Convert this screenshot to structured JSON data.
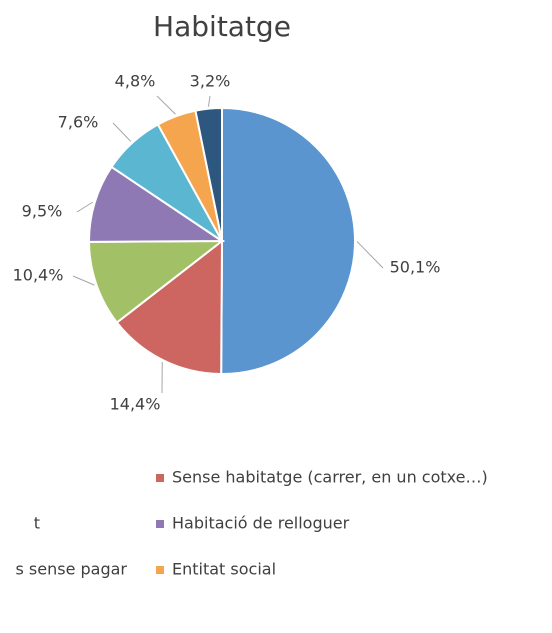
{
  "chart_data": {
    "type": "pie",
    "title": "Habitatge",
    "categories": [
      null,
      "Sense habitatge (carrer, en un cotxe…)",
      "t",
      "Habitació de relloguer",
      "s sense pagar",
      "Entitat social",
      null
    ],
    "values": [
      50.1,
      14.4,
      10.4,
      9.5,
      7.6,
      4.8,
      3.2
    ],
    "value_labels": [
      "50,1%",
      "14,4%",
      "10,4%",
      "9,5%",
      "7,6%",
      "4,8%",
      "3,2%"
    ],
    "colors": [
      "#5b95cf",
      "#cd6660",
      "#a2c065",
      "#8e79b5",
      "#5bb6d2",
      "#f5a54e",
      "#2e577f"
    ],
    "legend": "bottom"
  }
}
